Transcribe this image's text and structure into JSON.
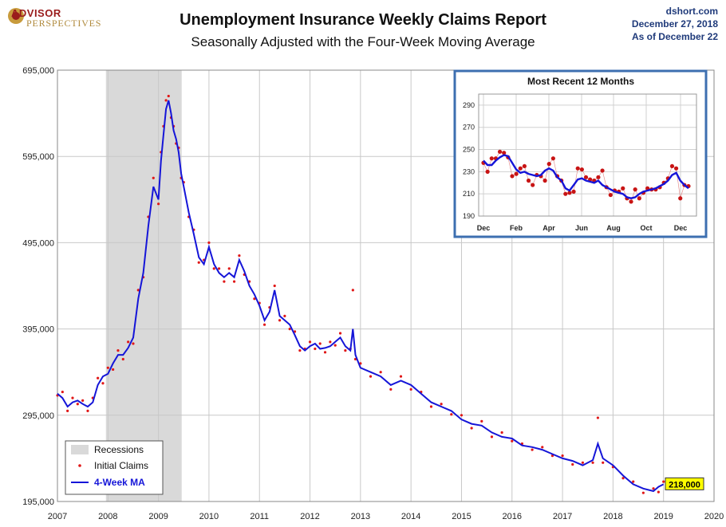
{
  "branding": {
    "logo_line1": "ADVISOR",
    "logo_line2": "PERSPECTIVES",
    "source_site": "dshort.com",
    "source_date": "December 27, 2018",
    "source_asof": "As  of December 22"
  },
  "colors": {
    "ma_line": "#1515d8",
    "claims_dot": "#e01818",
    "recession": "#d9d9d9",
    "inset_border": "#3d6fb0",
    "value_tag": "#ffff00"
  },
  "chart_data": [
    {
      "type": "line",
      "title": "Unemployment Insurance Weekly Claims Report",
      "subtitle": "Seasonally Adjusted with the Four-Week Moving Average",
      "xlabel": "",
      "ylabel": "",
      "xlim": [
        2007,
        2020
      ],
      "ylim": [
        195000,
        695000
      ],
      "x_ticks": [
        2007,
        2008,
        2009,
        2010,
        2011,
        2012,
        2013,
        2014,
        2015,
        2016,
        2017,
        2018,
        2019,
        2020
      ],
      "y_ticks": [
        195000,
        295000,
        395000,
        495000,
        595000,
        695000
      ],
      "y_tick_labels": [
        "195,000",
        "295,000",
        "395,000",
        "495,000",
        "595,000",
        "695,000"
      ],
      "grid": true,
      "legend_position": "bottom-left",
      "legend": [
        "Recessions",
        "Initial Claims",
        "4-Week MA"
      ],
      "recession": [
        2007.96,
        2009.46
      ],
      "last_value_label": "218,000",
      "series": [
        {
          "name": "4-Week MA",
          "x": [
            2007.0,
            2007.1,
            2007.2,
            2007.3,
            2007.4,
            2007.5,
            2007.6,
            2007.7,
            2007.8,
            2007.9,
            2008.0,
            2008.1,
            2008.2,
            2008.3,
            2008.4,
            2008.5,
            2008.6,
            2008.7,
            2008.8,
            2008.9,
            2009.0,
            2009.05,
            2009.1,
            2009.15,
            2009.2,
            2009.25,
            2009.3,
            2009.35,
            2009.4,
            2009.45,
            2009.5,
            2009.6,
            2009.7,
            2009.8,
            2009.9,
            2010.0,
            2010.1,
            2010.2,
            2010.3,
            2010.4,
            2010.5,
            2010.6,
            2010.7,
            2010.8,
            2010.9,
            2011.0,
            2011.1,
            2011.2,
            2011.3,
            2011.4,
            2011.5,
            2011.6,
            2011.7,
            2011.8,
            2011.9,
            2012.0,
            2012.1,
            2012.2,
            2012.3,
            2012.4,
            2012.5,
            2012.6,
            2012.7,
            2012.8,
            2012.85,
            2012.9,
            2013.0,
            2013.2,
            2013.4,
            2013.6,
            2013.8,
            2014.0,
            2014.2,
            2014.4,
            2014.6,
            2014.8,
            2015.0,
            2015.2,
            2015.4,
            2015.6,
            2015.8,
            2016.0,
            2016.2,
            2016.4,
            2016.6,
            2016.8,
            2017.0,
            2017.2,
            2017.4,
            2017.6,
            2017.7,
            2017.8,
            2018.0,
            2018.2,
            2018.4,
            2018.6,
            2018.8,
            2018.9,
            2019.0
          ],
          "values": [
            320000,
            315000,
            305000,
            310000,
            312000,
            308000,
            305000,
            310000,
            330000,
            340000,
            343000,
            355000,
            365000,
            365000,
            373000,
            385000,
            430000,
            460000,
            515000,
            560000,
            545000,
            590000,
            620000,
            650000,
            660000,
            645000,
            625000,
            615000,
            600000,
            575000,
            560000,
            530000,
            505000,
            478000,
            470000,
            490000,
            470000,
            460000,
            455000,
            460000,
            455000,
            475000,
            462000,
            445000,
            435000,
            422000,
            405000,
            415000,
            440000,
            410000,
            405000,
            400000,
            388000,
            375000,
            370000,
            375000,
            378000,
            372000,
            373000,
            375000,
            380000,
            385000,
            375000,
            370000,
            395000,
            365000,
            350000,
            345000,
            340000,
            330000,
            335000,
            330000,
            320000,
            310000,
            305000,
            300000,
            290000,
            285000,
            283000,
            275000,
            270000,
            268000,
            260000,
            258000,
            255000,
            250000,
            245000,
            242000,
            237000,
            243000,
            262000,
            245000,
            237000,
            225000,
            215000,
            210000,
            207000,
            212000,
            215000
          ]
        },
        {
          "name": "Initial Claims",
          "x": [
            2007.0,
            2007.1,
            2007.2,
            2007.3,
            2007.4,
            2007.5,
            2007.6,
            2007.7,
            2007.8,
            2007.9,
            2008.0,
            2008.1,
            2008.2,
            2008.3,
            2008.4,
            2008.5,
            2008.6,
            2008.7,
            2008.8,
            2008.9,
            2009.0,
            2009.05,
            2009.1,
            2009.15,
            2009.2,
            2009.25,
            2009.3,
            2009.35,
            2009.4,
            2009.45,
            2009.5,
            2009.6,
            2009.7,
            2009.8,
            2009.9,
            2010.0,
            2010.1,
            2010.2,
            2010.3,
            2010.4,
            2010.5,
            2010.6,
            2010.7,
            2010.8,
            2010.9,
            2011.0,
            2011.1,
            2011.2,
            2011.3,
            2011.4,
            2011.5,
            2011.6,
            2011.7,
            2011.8,
            2011.9,
            2012.0,
            2012.1,
            2012.2,
            2012.3,
            2012.4,
            2012.5,
            2012.6,
            2012.7,
            2012.8,
            2012.85,
            2012.9,
            2013.0,
            2013.2,
            2013.4,
            2013.6,
            2013.8,
            2014.0,
            2014.2,
            2014.4,
            2014.6,
            2014.8,
            2015.0,
            2015.2,
            2015.4,
            2015.6,
            2015.8,
            2016.0,
            2016.2,
            2016.4,
            2016.6,
            2016.8,
            2017.0,
            2017.2,
            2017.4,
            2017.6,
            2017.7,
            2017.8,
            2018.0,
            2018.2,
            2018.4,
            2018.6,
            2018.8,
            2018.9,
            2019.0
          ],
          "values": [
            318000,
            322000,
            300000,
            315000,
            308000,
            312000,
            300000,
            315000,
            338000,
            332000,
            350000,
            348000,
            370000,
            360000,
            380000,
            378000,
            440000,
            455000,
            525000,
            570000,
            540000,
            600000,
            630000,
            660000,
            665000,
            640000,
            630000,
            610000,
            605000,
            570000,
            565000,
            525000,
            510000,
            472000,
            475000,
            495000,
            465000,
            465000,
            450000,
            465000,
            450000,
            480000,
            458000,
            450000,
            430000,
            425000,
            400000,
            420000,
            445000,
            405000,
            410000,
            395000,
            392000,
            370000,
            372000,
            380000,
            372000,
            378000,
            368000,
            380000,
            376000,
            390000,
            370000,
            372000,
            440000,
            360000,
            355000,
            340000,
            345000,
            325000,
            340000,
            325000,
            322000,
            305000,
            308000,
            296000,
            295000,
            280000,
            288000,
            270000,
            275000,
            265000,
            262000,
            255000,
            258000,
            248000,
            248000,
            238000,
            240000,
            240000,
            292000,
            240000,
            235000,
            222000,
            218000,
            205000,
            210000,
            206000,
            218000
          ]
        }
      ]
    },
    {
      "type": "line",
      "title": "Most Recent 12 Months",
      "ylim": [
        190,
        300
      ],
      "y_ticks": [
        190,
        210,
        230,
        250,
        270,
        290
      ],
      "x_ticks": [
        "Dec",
        "Feb",
        "Apr",
        "Jun",
        "Aug",
        "Oct",
        "Dec"
      ],
      "grid": true,
      "series": [
        {
          "name": "4-Week MA",
          "values": [
            240,
            236,
            236,
            240,
            243,
            245,
            244,
            238,
            232,
            229,
            230,
            228,
            227,
            226,
            227,
            231,
            233,
            231,
            225,
            222,
            215,
            213,
            218,
            223,
            224,
            222,
            221,
            220,
            222,
            218,
            216,
            214,
            212,
            211,
            210,
            207,
            206,
            207,
            210,
            212,
            213,
            214,
            215,
            217,
            219,
            222,
            227,
            229,
            222,
            218,
            215
          ]
        },
        {
          "name": "Initial Claims",
          "values": [
            238,
            230,
            242,
            242,
            248,
            247,
            243,
            226,
            228,
            233,
            235,
            222,
            218,
            227,
            226,
            222,
            237,
            242,
            226,
            222,
            210,
            211,
            212,
            233,
            232,
            225,
            223,
            222,
            225,
            231,
            216,
            209,
            213,
            212,
            215,
            206,
            203,
            214,
            206,
            211,
            215,
            214,
            214,
            216,
            220,
            224,
            235,
            233,
            206,
            218,
            217
          ]
        }
      ]
    }
  ]
}
